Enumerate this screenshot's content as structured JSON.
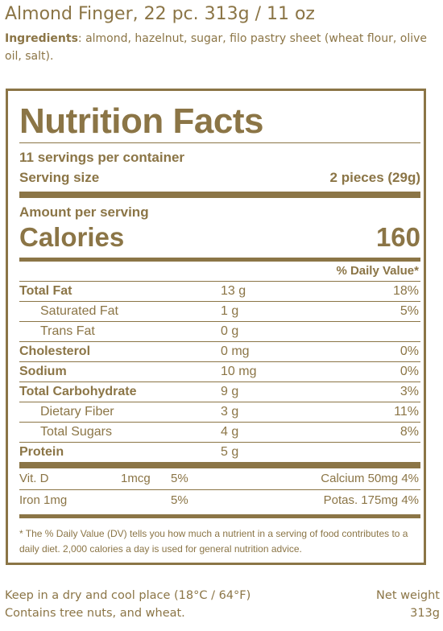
{
  "header": {
    "product_title": "Almond Finger, 22 pc. 313g / 11 oz",
    "ingredients_label": "Ingredients",
    "ingredients_text": ": almond, hazelnut, sugar, filo pastry sheet (wheat flour, olive oil, salt)."
  },
  "facts": {
    "title": "Nutrition Facts",
    "servings_per_container": "11 servings per container",
    "serving_size_label": "Serving size",
    "serving_size_value": "2 pieces (29g)",
    "amount_per_serving": "Amount per serving",
    "calories_label": "Calories",
    "calories_value": "160",
    "dv_header": "% Daily Value*",
    "nutrients": [
      {
        "name": "Total Fat",
        "amount": "13 g",
        "dv": "18%"
      },
      {
        "name": "Saturated Fat",
        "amount": "1 g",
        "dv": "5%"
      },
      {
        "name": "Trans Fat",
        "amount": "0 g",
        "dv": ""
      },
      {
        "name": "Cholesterol",
        "amount": "0 mg",
        "dv": "0%"
      },
      {
        "name": "Sodium",
        "amount": "10 mg",
        "dv": "0%"
      },
      {
        "name": "Total Carbohydrate",
        "amount": "9 g",
        "dv": "3%"
      },
      {
        "name": "Dietary Fiber",
        "amount": "3 g",
        "dv": "11%"
      },
      {
        "name": "Total Sugars",
        "amount": "4 g",
        "dv": "8%"
      },
      {
        "name": "Protein",
        "amount": "5 g",
        "dv": ""
      }
    ],
    "vitamins": [
      {
        "left_name": "Vit. D",
        "left_amount": "1mcg",
        "left_dv": "5%",
        "right": "Calcium 50mg 4%"
      },
      {
        "left_name": "Iron 1mg",
        "left_amount": "",
        "left_dv": "5%",
        "right": "Potas. 175mg 4%"
      }
    ],
    "footnote": "* The % Daily Value (DV) tells you how much a nutrient in a serving of food contributes to a daily diet. 2,000 calories a day is used for general nutrition advice."
  },
  "footer": {
    "storage": "Keep in a dry and cool place (18°C / 64°F)",
    "allergens": "Contains tree nuts, and wheat.",
    "net_weight_label": "Net weight",
    "net_weight_value": "313g"
  },
  "colors": {
    "text": "#8b7546",
    "background": "#ffffff"
  }
}
